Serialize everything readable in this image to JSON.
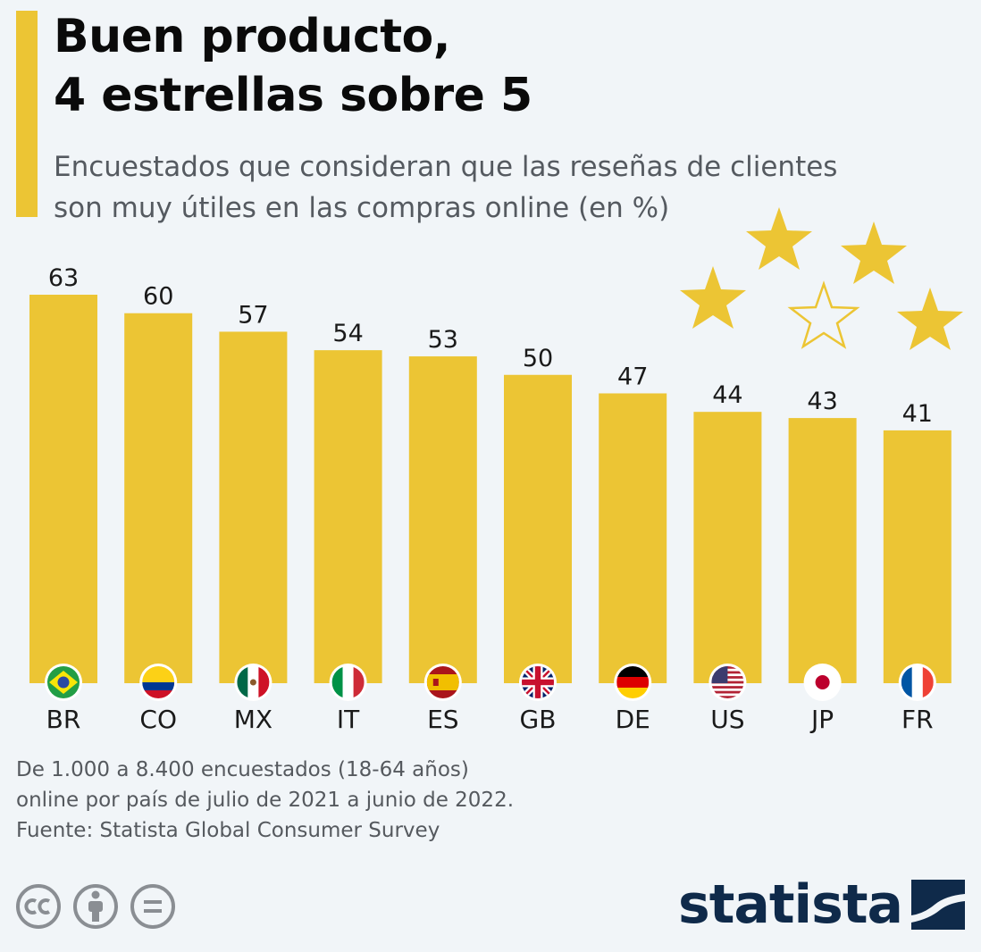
{
  "header": {
    "title_line1": "Buen producto,",
    "title_line2": "4 estrellas sobre 5",
    "subtitle_line1": "Encuestados que consideran que las reseñas de clientes",
    "subtitle_line2": "son muy útiles en las compras online (en %)"
  },
  "chart_data": {
    "type": "bar",
    "title": "Buen producto, 4 estrellas sobre 5",
    "subtitle": "Encuestados que consideran que las reseñas de clientes son muy útiles en las compras online (en %)",
    "categories": [
      "BR",
      "CO",
      "MX",
      "IT",
      "ES",
      "GB",
      "DE",
      "US",
      "JP",
      "FR"
    ],
    "values": [
      63,
      60,
      57,
      54,
      53,
      50,
      47,
      44,
      43,
      41
    ],
    "xlabel": "",
    "ylabel": "%",
    "ylim": [
      0,
      63
    ],
    "grid": false,
    "legend": "none",
    "bar_color": "#ecc534"
  },
  "colors": {
    "accent": "#ecc534",
    "brand": "#0f2a4a",
    "text_muted": "#55595e"
  },
  "decoration": {
    "stars": [
      "star-icon",
      "star-icon",
      "star-icon",
      "star-outline-icon",
      "star-icon"
    ]
  },
  "footer": {
    "note_line1": "De 1.000 a 8.400 encuestados (18-64 años)",
    "note_line2": "online por país de julio de 2021 a junio de 2022.",
    "source": "Fuente: Statista Global Consumer Survey",
    "license_icons": [
      "cc-icon",
      "by-icon",
      "nd-icon"
    ],
    "logo_text": "statista"
  }
}
